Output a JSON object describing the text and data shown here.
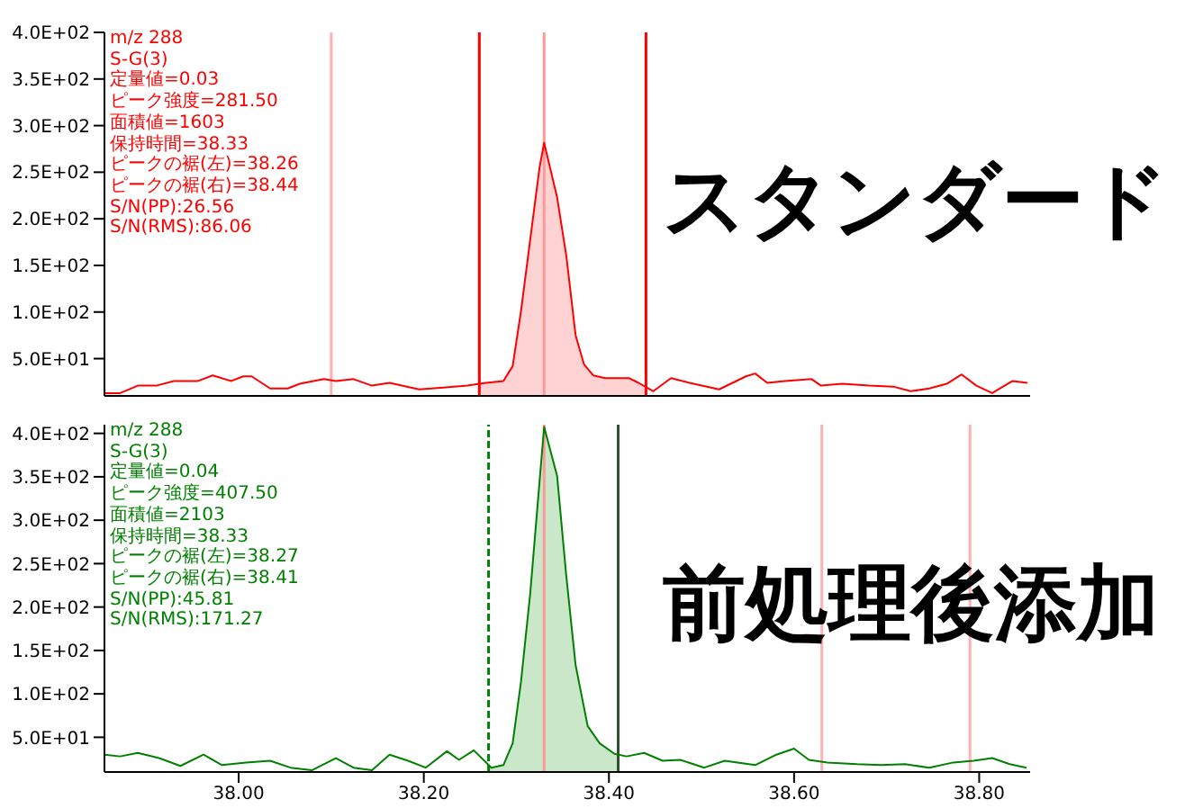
{
  "chart_data": [
    {
      "type": "line",
      "title": "スタンダード",
      "annotations": [
        "m/z 288",
        "S-G(3)",
        "定量値=0.03",
        "ピーク強度=281.50",
        "面積値=1603",
        "保持時間=38.33",
        "ピークの裾(左)=38.26",
        "ピークの裾(右)=38.44",
        "S/N(PP):26.56",
        "S/N(RMS):86.06"
      ],
      "xlim": [
        37.855,
        38.855
      ],
      "ylim": [
        10,
        400
      ],
      "yticks": [
        {
          "value": 50,
          "label": "5.0E+01"
        },
        {
          "value": 100,
          "label": "1.0E+02"
        },
        {
          "value": 150,
          "label": "1.5E+02"
        },
        {
          "value": 200,
          "label": "2.0E+02"
        },
        {
          "value": 250,
          "label": "2.5E+02"
        },
        {
          "value": 300,
          "label": "3.0E+02"
        },
        {
          "value": 350,
          "label": "3.5E+02"
        },
        {
          "value": 400,
          "label": "4.0E+02"
        }
      ],
      "tick_labels": "y",
      "series": [
        {
          "color": "#ff0000",
          "x": [
            37.855,
            37.872,
            37.891,
            37.911,
            37.93,
            37.956,
            37.972,
            37.992,
            38.005,
            38.014,
            38.034,
            38.053,
            38.066,
            38.092,
            38.105,
            38.124,
            38.144,
            38.163,
            38.195,
            38.221,
            38.247,
            38.267,
            38.286,
            38.296,
            38.305,
            38.315,
            38.325,
            38.33,
            38.344,
            38.354,
            38.364,
            38.373,
            38.383,
            38.396,
            38.422,
            38.432,
            38.448,
            38.467,
            38.487,
            38.519,
            38.548,
            38.558,
            38.571,
            38.59,
            38.619,
            38.629,
            38.652,
            38.681,
            38.707,
            38.726,
            38.746,
            38.765,
            38.781,
            38.797,
            38.814,
            38.836,
            38.852
          ],
          "values": [
            13,
            13,
            21,
            21,
            26,
            26,
            32,
            26,
            31,
            31,
            18,
            18,
            23,
            28,
            26,
            28,
            21,
            24,
            17,
            19,
            21,
            24,
            26,
            42,
            101,
            178,
            255,
            281.5,
            223,
            160,
            75,
            44,
            32,
            29,
            29,
            24,
            15,
            29,
            24,
            17,
            31,
            34,
            24,
            26,
            28,
            21,
            23,
            21,
            20,
            15,
            18,
            23,
            33,
            21,
            13,
            26,
            24
          ]
        },
        {
          "type": "area",
          "color": "#ff8080",
          "x": [
            38.26,
            38.267,
            38.286,
            38.296,
            38.305,
            38.315,
            38.325,
            38.33,
            38.344,
            38.354,
            38.364,
            38.373,
            38.383,
            38.396,
            38.422,
            38.432,
            38.44
          ],
          "values": [
            24,
            24,
            26,
            42,
            101,
            178,
            255,
            281.5,
            223,
            160,
            75,
            44,
            32,
            29,
            29,
            24,
            20
          ]
        }
      ],
      "ref_lines": [
        {
          "axis": "x",
          "value": 38.26,
          "color": "#ff0000"
        },
        {
          "axis": "x",
          "value": 38.44,
          "color": "#ff0000"
        },
        {
          "axis": "x",
          "value": 38.33,
          "color": "#ff9999"
        },
        {
          "axis": "x",
          "value": 38.1,
          "color": "#ffb0b0"
        }
      ]
    },
    {
      "type": "line",
      "title": "前処理後添加",
      "annotations": [
        "m/z 288",
        "S-G(3)",
        "定量値=0.04",
        "ピーク強度=407.50",
        "面積値=2103",
        "保持時間=38.33",
        "ピークの裾(左)=38.27",
        "ピークの裾(右)=38.41",
        "S/N(PP):45.81",
        "S/N(RMS):171.27"
      ],
      "xlim": [
        37.855,
        38.855
      ],
      "xticks": [
        {
          "value": 38.0,
          "label": "38.00"
        },
        {
          "value": 38.2,
          "label": "38.20"
        },
        {
          "value": 38.4,
          "label": "38.40"
        },
        {
          "value": 38.6,
          "label": "38.60"
        },
        {
          "value": 38.8,
          "label": "38.80"
        }
      ],
      "ylim": [
        10,
        410
      ],
      "yticks": [
        {
          "value": 50,
          "label": "5.0E+01"
        },
        {
          "value": 100,
          "label": "1.0E+02"
        },
        {
          "value": 150,
          "label": "1.5E+02"
        },
        {
          "value": 200,
          "label": "2.0E+02"
        },
        {
          "value": 250,
          "label": "2.5E+02"
        },
        {
          "value": 300,
          "label": "3.0E+02"
        },
        {
          "value": 350,
          "label": "3.5E+02"
        },
        {
          "value": 400,
          "label": "4.0E+02"
        }
      ],
      "series": [
        {
          "color": "#008000",
          "x": [
            37.855,
            37.872,
            37.891,
            37.914,
            37.937,
            37.962,
            37.982,
            38.008,
            38.034,
            38.056,
            38.079,
            38.105,
            38.124,
            38.144,
            38.163,
            38.183,
            38.202,
            38.225,
            38.238,
            38.254,
            38.273,
            38.286,
            38.296,
            38.305,
            38.315,
            38.325,
            38.33,
            38.344,
            38.354,
            38.364,
            38.377,
            38.39,
            38.406,
            38.419,
            38.438,
            38.458,
            38.477,
            38.503,
            38.525,
            38.558,
            38.581,
            38.6,
            38.616,
            38.636,
            38.668,
            38.694,
            38.72,
            38.746,
            38.772,
            38.794,
            38.814,
            38.833,
            38.851
          ],
          "values": [
            30,
            28,
            32,
            26,
            17,
            30,
            18,
            21,
            23,
            15,
            12,
            26,
            15,
            12,
            30,
            23,
            15,
            34,
            24,
            35,
            15,
            18,
            43,
            114,
            216,
            344,
            407.5,
            351,
            235,
            133,
            63,
            43,
            31,
            28,
            32,
            23,
            24,
            15,
            23,
            18,
            30,
            37,
            24,
            21,
            19,
            18,
            19,
            15,
            21,
            23,
            26,
            19,
            15
          ]
        },
        {
          "type": "area",
          "color": "#66bb66",
          "x": [
            38.27,
            38.273,
            38.286,
            38.296,
            38.305,
            38.315,
            38.325,
            38.33,
            38.344,
            38.354,
            38.364,
            38.377,
            38.39,
            38.406,
            38.41
          ],
          "values": [
            15,
            15,
            18,
            43,
            114,
            216,
            344,
            407.5,
            351,
            235,
            133,
            63,
            43,
            31,
            30
          ]
        }
      ],
      "ref_lines": [
        {
          "axis": "x",
          "value": 38.27,
          "color": "#008000",
          "line_style": "dashed"
        },
        {
          "axis": "x",
          "value": 38.41,
          "color": "#2f4f2f"
        },
        {
          "axis": "x",
          "value": 38.33,
          "color": "#ff9999"
        },
        {
          "axis": "x",
          "value": 38.63,
          "color": "#ffb0b0"
        },
        {
          "axis": "x",
          "value": 38.79,
          "color": "#ffb0b0"
        }
      ]
    }
  ]
}
